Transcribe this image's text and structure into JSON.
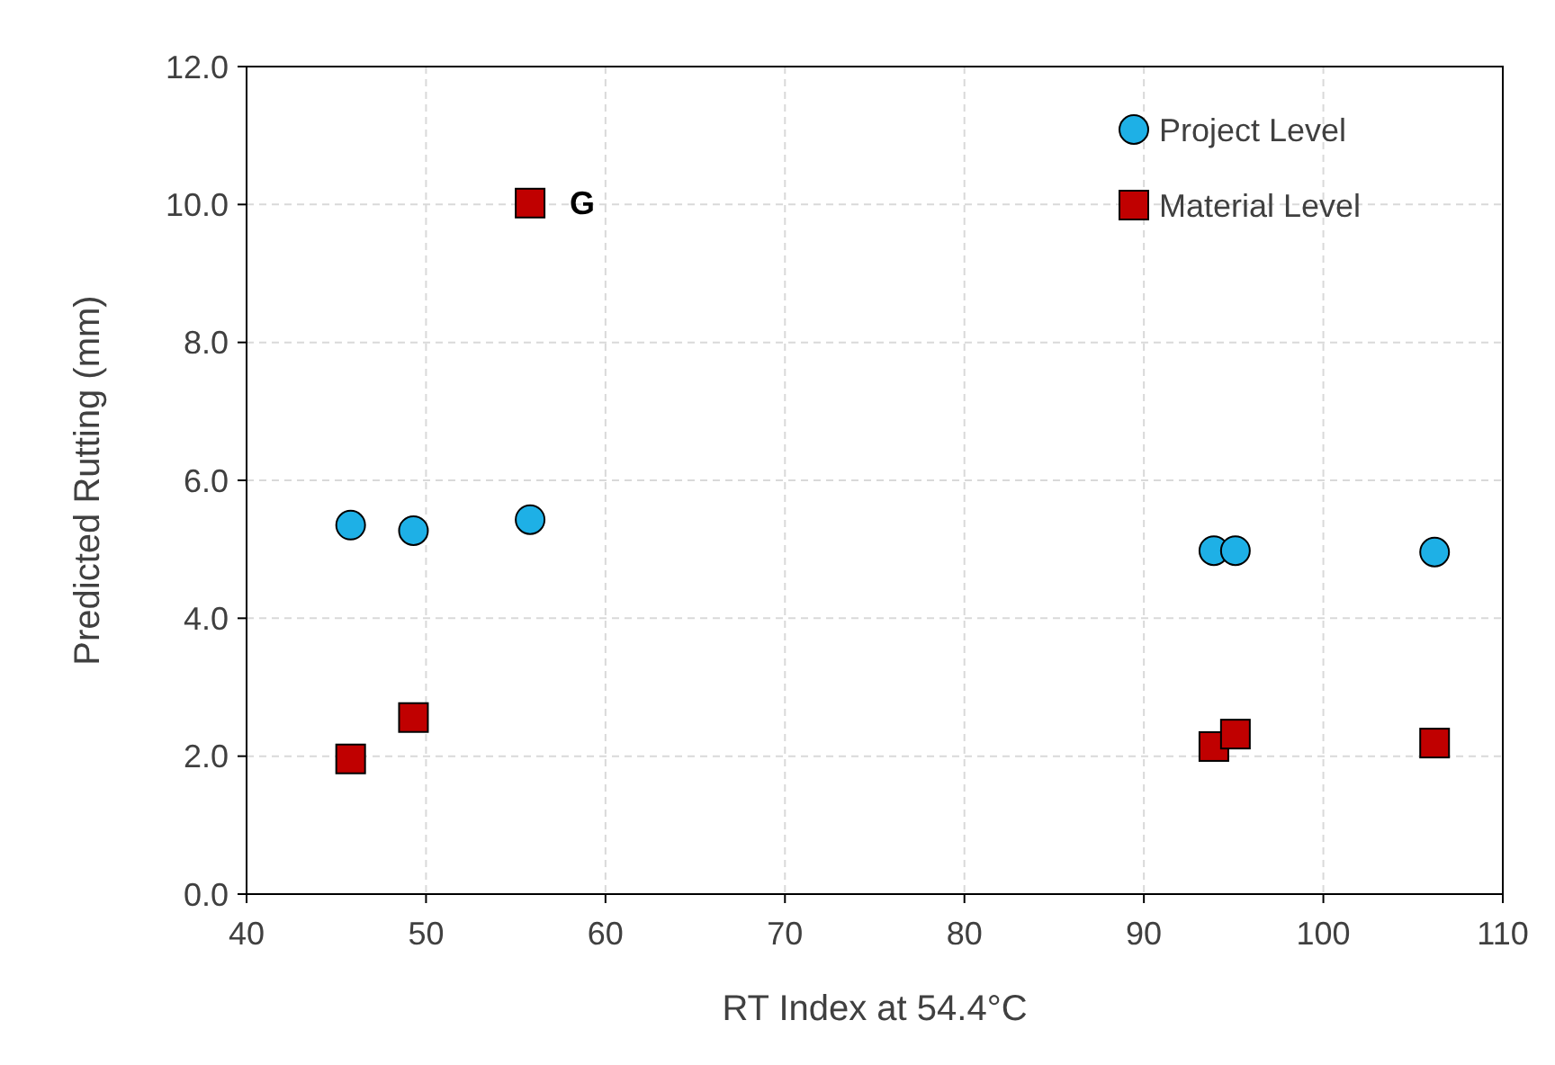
{
  "chart_data": {
    "type": "scatter",
    "xlabel": "RT Index at 54.4°C",
    "ylabel": "Predicted Rutting (mm)",
    "xlim": [
      40,
      110
    ],
    "xticks": [
      40,
      50,
      60,
      70,
      80,
      90,
      100,
      110
    ],
    "ylim": [
      0,
      12
    ],
    "yticks": [
      {
        "value": 0,
        "label": "0.0"
      },
      {
        "value": 2,
        "label": "2.0"
      },
      {
        "value": 4,
        "label": "4.0"
      },
      {
        "value": 6,
        "label": "6.0"
      },
      {
        "value": 8,
        "label": "8.0"
      },
      {
        "value": 10,
        "label": "10.0"
      },
      {
        "value": 12,
        "label": "12.0"
      }
    ],
    "grid": true,
    "legend": "top right",
    "series": [
      {
        "name": "Project Level",
        "color": "#1eb0e6",
        "marker": "circle",
        "x": [
          45.8,
          49.3,
          55.8,
          93.9,
          95.1,
          106.2
        ],
        "values": [
          5.35,
          5.27,
          5.43,
          4.98,
          4.98,
          4.96
        ]
      },
      {
        "name": "Material Level",
        "color": "#c00000",
        "marker": "square",
        "x": [
          45.8,
          49.3,
          55.8,
          93.9,
          95.1,
          106.2
        ],
        "values": [
          1.96,
          2.56,
          10.02,
          2.14,
          2.32,
          2.19
        ]
      }
    ],
    "annotations": [
      {
        "text": "G",
        "x": 55.8,
        "y": 10.02
      }
    ]
  }
}
